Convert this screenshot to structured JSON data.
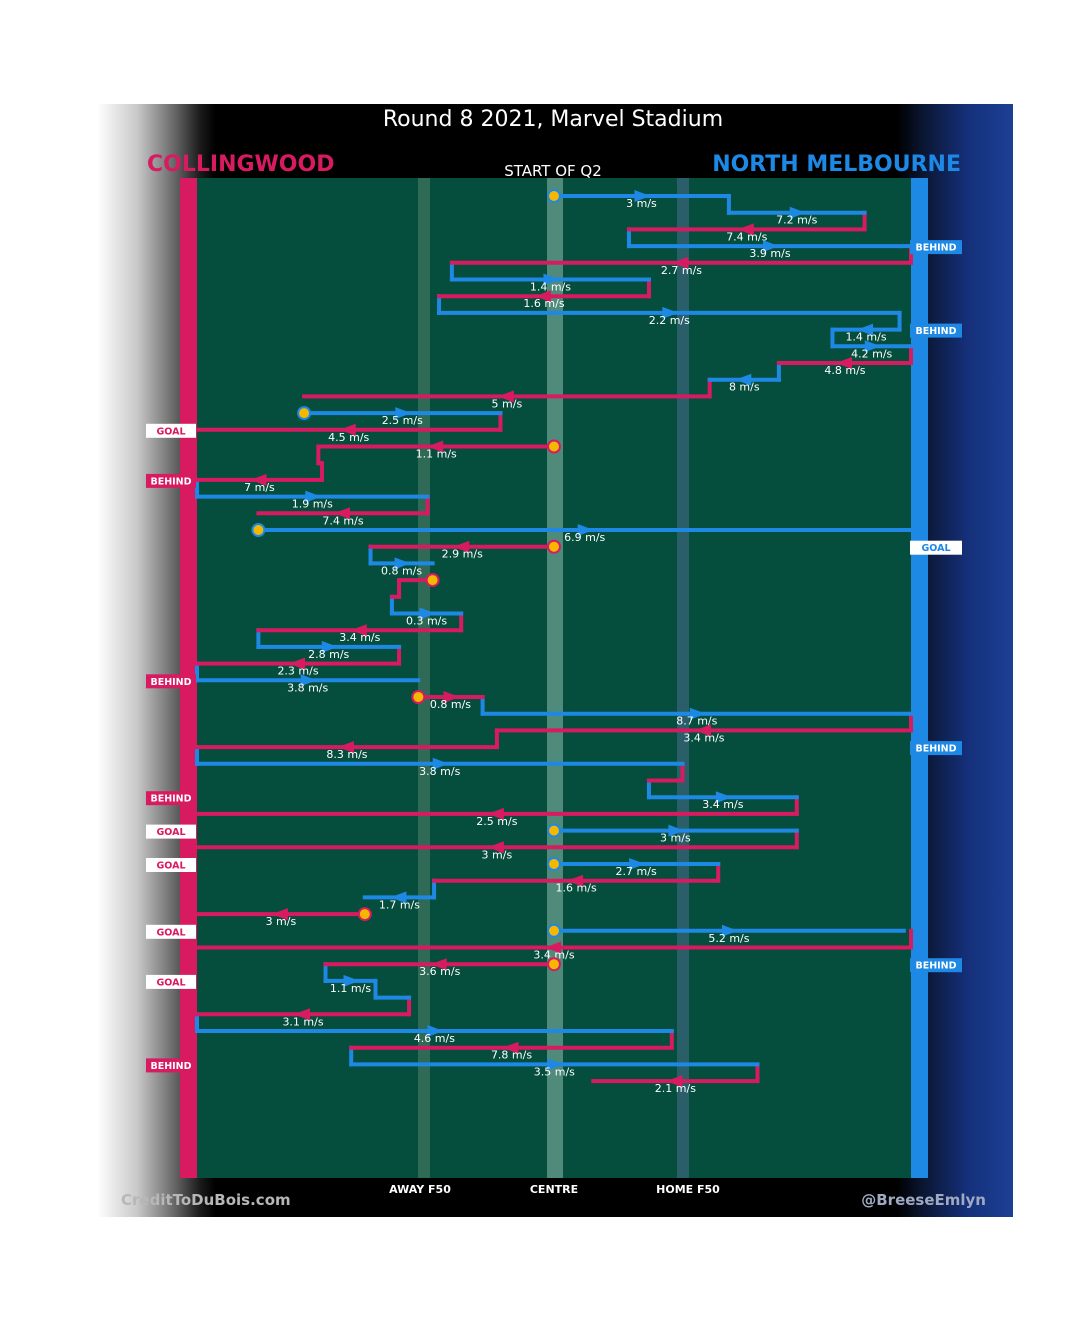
{
  "title": "Round 8 2021, Marvel Stadium",
  "teams": {
    "left": {
      "name": "COLLINGWOOD",
      "color": "#d81b60"
    },
    "right": {
      "name": "NORTH MELBOURNE",
      "color": "#1e88e5"
    }
  },
  "subtitle": "START OF Q2",
  "colors": {
    "field": "#054d3c",
    "centre_band": "#4f8a7a",
    "pod": "#f5b800"
  },
  "x_axis_labels": {
    "away_f50": "AWAY F50",
    "centre": "CENTRE",
    "home_f50": "HOME F50"
  },
  "footer": {
    "left": "CreditToDuBois.com",
    "right": "@BreeseEmlyn"
  },
  "outcome_labels": {
    "goal": "GOAL",
    "behind": "BEHIND"
  },
  "chart_data": {
    "type": "line",
    "x_positions": {
      "left_goal": 0,
      "away_f50": 0.32,
      "centre": 0.5,
      "home_f50": 0.68,
      "right_goal": 1
    },
    "outcomes": [
      {
        "side": "right",
        "label": "BEHIND",
        "at_chain": 3
      },
      {
        "side": "right",
        "label": "BEHIND",
        "at_chain": 8
      },
      {
        "side": "left",
        "label": "GOAL",
        "at_chain": 14
      },
      {
        "side": "left",
        "label": "BEHIND",
        "at_chain": 17
      },
      {
        "side": "right",
        "label": "GOAL",
        "at_chain": 21
      },
      {
        "side": "left",
        "label": "BEHIND",
        "at_chain": 29
      },
      {
        "side": "right",
        "label": "BEHIND",
        "at_chain": 33
      },
      {
        "side": "left",
        "label": "BEHIND",
        "at_chain": 36
      },
      {
        "side": "left",
        "label": "GOAL",
        "at_chain": 38
      },
      {
        "side": "left",
        "label": "GOAL",
        "at_chain": 40
      },
      {
        "side": "left",
        "label": "GOAL",
        "at_chain": 44
      },
      {
        "side": "right",
        "label": "BEHIND",
        "at_chain": 46
      },
      {
        "side": "left",
        "label": "GOAL",
        "at_chain": 47
      },
      {
        "side": "left",
        "label": "BEHIND",
        "at_chain": 52
      }
    ],
    "chains": [
      {
        "team": "north",
        "x0": 0.5,
        "x1": 0.745,
        "speed": "3 m/s",
        "start": true
      },
      {
        "team": "north",
        "x0": 0.745,
        "x1": 0.935,
        "speed": "7.2 m/s"
      },
      {
        "team": "coll",
        "x0": 0.935,
        "x1": 0.605,
        "speed": "7.4 m/s"
      },
      {
        "team": "north",
        "x0": 0.605,
        "x1": 1,
        "speed": "3.9 m/s"
      },
      {
        "team": "coll",
        "x0": 1,
        "x1": 0.357,
        "speed": "2.7 m/s"
      },
      {
        "team": "north",
        "x0": 0.357,
        "x1": 0.633,
        "speed": "1.4 m/s"
      },
      {
        "team": "coll",
        "x0": 0.633,
        "x1": 0.339,
        "speed": "1.6 m/s"
      },
      {
        "team": "north",
        "x0": 0.339,
        "x1": 0.984,
        "speed": "2.2 m/s"
      },
      {
        "team": "north",
        "x0": 0.984,
        "x1": 0.89,
        "speed": "1.4 m/s"
      },
      {
        "team": "north",
        "x0": 0.89,
        "x1": 1,
        "speed": "4.2 m/s"
      },
      {
        "team": "coll",
        "x0": 1,
        "x1": 0.815,
        "speed": "4.8 m/s"
      },
      {
        "team": "north",
        "x0": 0.815,
        "x1": 0.718,
        "speed": "8 m/s"
      },
      {
        "team": "coll",
        "x0": 0.718,
        "x1": 0.15,
        "speed": "5 m/s"
      },
      {
        "team": "north",
        "x0": 0.15,
        "x1": 0.425,
        "speed": "2.5 m/s",
        "start": true
      },
      {
        "team": "coll",
        "x0": 0.425,
        "x1": 0,
        "speed": "4.5 m/s"
      },
      {
        "team": "coll",
        "x0": 0.5,
        "x1": 0.17,
        "speed": "1.1 m/s",
        "start": true
      },
      {
        "team": "coll",
        "x0": 0.17,
        "x1": 0.175,
        "speed": ""
      },
      {
        "team": "coll",
        "x0": 0.175,
        "x1": 0,
        "speed": "7 m/s"
      },
      {
        "team": "north",
        "x0": 0,
        "x1": 0.323,
        "speed": "1.9 m/s"
      },
      {
        "team": "coll",
        "x0": 0.323,
        "x1": 0.086,
        "speed": "7.4 m/s"
      },
      {
        "team": "north",
        "x0": 0.086,
        "x1": 1,
        "speed": "6.9 m/s",
        "start": true
      },
      {
        "team": "coll",
        "x0": 0.5,
        "x1": 0.243,
        "speed": "2.9 m/s",
        "start": true
      },
      {
        "team": "north",
        "x0": 0.243,
        "x1": 0.33,
        "speed": "0.8 m/s"
      },
      {
        "team": "coll",
        "x0": 0.33,
        "x1": 0.283,
        "speed": "",
        "start": true
      },
      {
        "team": "coll",
        "x0": 0.283,
        "x1": 0.273,
        "speed": ""
      },
      {
        "team": "north",
        "x0": 0.273,
        "x1": 0.37,
        "speed": "0.3 m/s"
      },
      {
        "team": "coll",
        "x0": 0.37,
        "x1": 0.086,
        "speed": "3.4 m/s"
      },
      {
        "team": "north",
        "x0": 0.086,
        "x1": 0.283,
        "speed": "2.8 m/s"
      },
      {
        "team": "coll",
        "x0": 0.283,
        "x1": 0,
        "speed": "2.3 m/s"
      },
      {
        "team": "north",
        "x0": 0,
        "x1": 0.31,
        "speed": "3.8 m/s"
      },
      {
        "team": "coll",
        "x0": 0.31,
        "x1": 0.4,
        "speed": "0.8 m/s",
        "start": true
      },
      {
        "team": "north",
        "x0": 0.4,
        "x1": 1,
        "speed": "8.7 m/s"
      },
      {
        "team": "coll",
        "x0": 1,
        "x1": 0.42,
        "speed": "3.4 m/s"
      },
      {
        "team": "coll",
        "x0": 0.42,
        "x1": 0,
        "speed": "8.3 m/s"
      },
      {
        "team": "north",
        "x0": 0,
        "x1": 0.68,
        "speed": "3.8 m/s"
      },
      {
        "team": "coll",
        "x0": 0.68,
        "x1": 0.633,
        "speed": ""
      },
      {
        "team": "north",
        "x0": 0.633,
        "x1": 0.84,
        "speed": "3.4 m/s"
      },
      {
        "team": "coll",
        "x0": 0.84,
        "x1": 0,
        "speed": "2.5 m/s"
      },
      {
        "team": "north",
        "x0": 0.5,
        "x1": 0.84,
        "speed": "3 m/s",
        "start": true
      },
      {
        "team": "coll",
        "x0": 0.84,
        "x1": 0,
        "speed": "3 m/s"
      },
      {
        "team": "north",
        "x0": 0.5,
        "x1": 0.73,
        "speed": "2.7 m/s",
        "start": true
      },
      {
        "team": "coll",
        "x0": 0.73,
        "x1": 0.332,
        "speed": "1.6 m/s"
      },
      {
        "team": "north",
        "x0": 0.332,
        "x1": 0.235,
        "speed": "1.7 m/s"
      },
      {
        "team": "coll",
        "x0": 0.235,
        "x1": 0,
        "speed": "3 m/s",
        "start": true
      },
      {
        "team": "north",
        "x0": 0.5,
        "x1": 0.99,
        "speed": "5.2 m/s",
        "start": true
      },
      {
        "team": "coll",
        "x0": 1,
        "x1": 0,
        "speed": "3.4 m/s"
      },
      {
        "team": "coll",
        "x0": 0.5,
        "x1": 0.18,
        "speed": "3.6 m/s",
        "start": true
      },
      {
        "team": "north",
        "x0": 0.18,
        "x1": 0.25,
        "speed": "1.1 m/s"
      },
      {
        "team": "north",
        "x0": 0.25,
        "x1": 0.297,
        "speed": ""
      },
      {
        "team": "coll",
        "x0": 0.297,
        "x1": 0,
        "speed": "3.1 m/s"
      },
      {
        "team": "north",
        "x0": 0,
        "x1": 0.665,
        "speed": "4.6 m/s"
      },
      {
        "team": "coll",
        "x0": 0.665,
        "x1": 0.216,
        "speed": "7.8 m/s"
      },
      {
        "team": "north",
        "x0": 0.216,
        "x1": 0.785,
        "speed": "3.5 m/s"
      },
      {
        "team": "coll",
        "x0": 0.785,
        "x1": 0.555,
        "speed": "2.1 m/s"
      }
    ]
  }
}
